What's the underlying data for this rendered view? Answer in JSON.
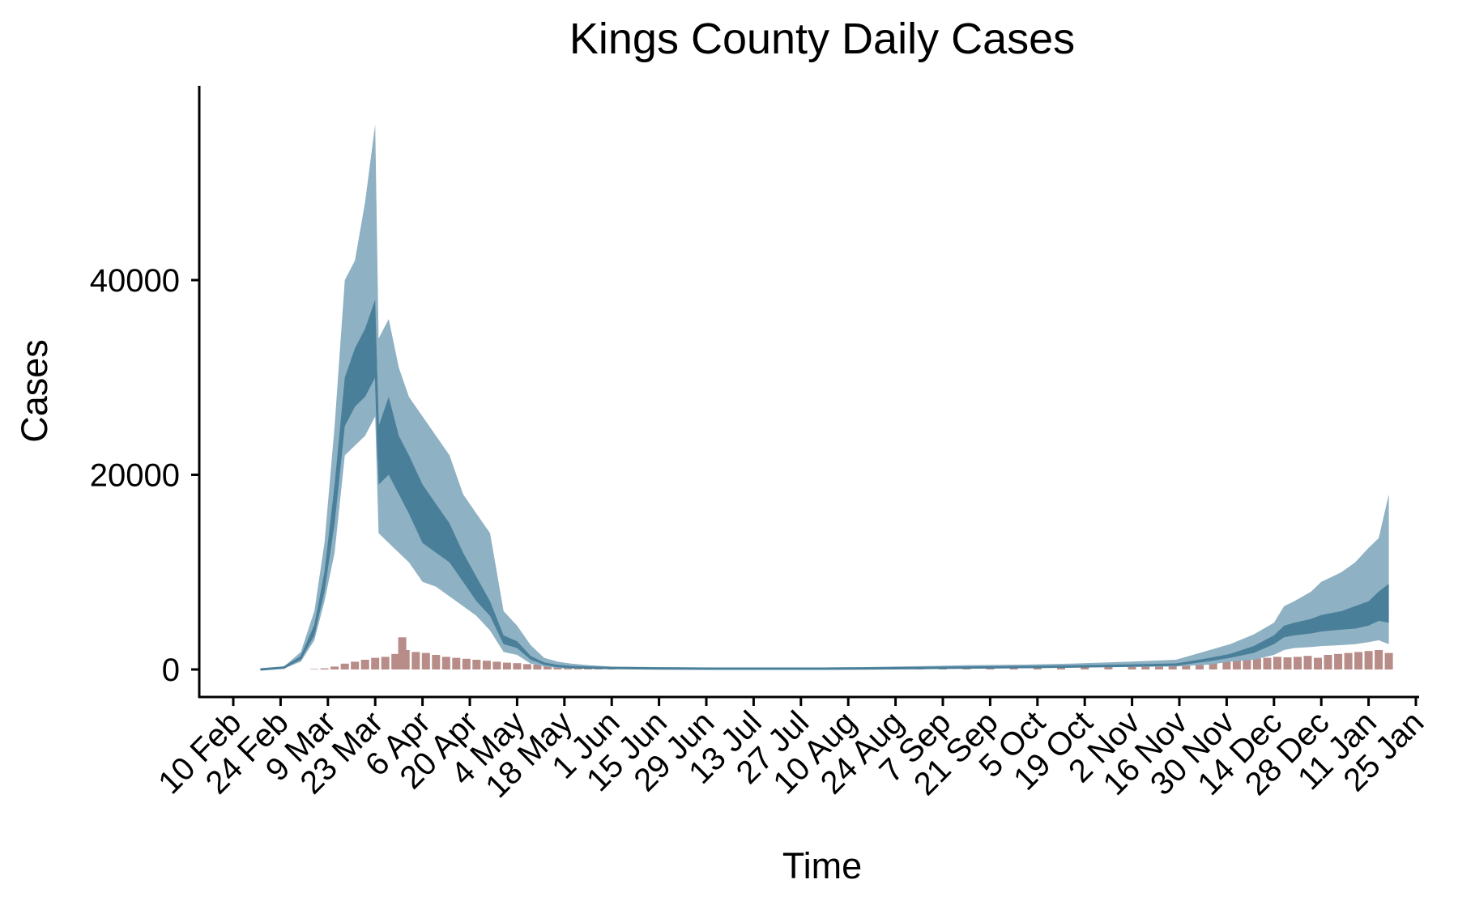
{
  "chart_data": {
    "type": "area",
    "title": "Kings County Daily Cases",
    "xlabel": "Time",
    "ylabel": "Cases",
    "ylim": [
      -7000,
      56000
    ],
    "yticks": [
      0,
      20000,
      40000
    ],
    "xticks": [
      {
        "date": "2020-02-10",
        "label": "10 Feb"
      },
      {
        "date": "2020-02-24",
        "label": "24 Feb"
      },
      {
        "date": "2020-03-09",
        "label": "9 Mar"
      },
      {
        "date": "2020-03-23",
        "label": "23 Mar"
      },
      {
        "date": "2020-04-06",
        "label": "6 Apr"
      },
      {
        "date": "2020-04-20",
        "label": "20 Apr"
      },
      {
        "date": "2020-05-04",
        "label": "4 May"
      },
      {
        "date": "2020-05-18",
        "label": "18 May"
      },
      {
        "date": "2020-06-01",
        "label": "1 Jun"
      },
      {
        "date": "2020-06-15",
        "label": "15 Jun"
      },
      {
        "date": "2020-06-29",
        "label": "29 Jun"
      },
      {
        "date": "2020-07-13",
        "label": "13 Jul"
      },
      {
        "date": "2020-07-27",
        "label": "27 Jul"
      },
      {
        "date": "2020-08-10",
        "label": "10 Aug"
      },
      {
        "date": "2020-08-24",
        "label": "24 Aug"
      },
      {
        "date": "2020-09-07",
        "label": "7 Sep"
      },
      {
        "date": "2020-09-21",
        "label": "21 Sep"
      },
      {
        "date": "2020-10-05",
        "label": "5 Oct"
      },
      {
        "date": "2020-10-19",
        "label": "19 Oct"
      },
      {
        "date": "2020-11-02",
        "label": "2 Nov"
      },
      {
        "date": "2020-11-16",
        "label": "16 Nov"
      },
      {
        "date": "2020-11-30",
        "label": "30 Nov"
      },
      {
        "date": "2020-12-14",
        "label": "14 Dec"
      },
      {
        "date": "2020-12-28",
        "label": "28 Dec"
      },
      {
        "date": "2021-01-11",
        "label": "11 Jan"
      },
      {
        "date": "2021-01-25",
        "label": "25 Jan"
      }
    ],
    "grid": false,
    "legend": "none",
    "colors": {
      "outer_band": "#8eb1c3",
      "inner_band": "#4a7f9a",
      "median_line": "#4a7f9a",
      "reported_bars": "#b88c88"
    },
    "estimate": {
      "x": [
        "2020-02-18",
        "2020-02-25",
        "2020-03-01",
        "2020-03-05",
        "2020-03-08",
        "2020-03-11",
        "2020-03-14",
        "2020-03-17",
        "2020-03-20",
        "2020-03-23",
        "2020-03-24",
        "2020-03-27",
        "2020-03-30",
        "2020-04-02",
        "2020-04-06",
        "2020-04-10",
        "2020-04-14",
        "2020-04-18",
        "2020-04-22",
        "2020-04-26",
        "2020-04-30",
        "2020-05-04",
        "2020-05-08",
        "2020-05-12",
        "2020-05-16",
        "2020-05-20",
        "2020-05-25",
        "2020-06-01",
        "2020-06-15",
        "2020-07-01",
        "2020-07-15",
        "2020-08-01",
        "2020-08-15",
        "2020-09-01",
        "2020-09-15",
        "2020-10-01",
        "2020-10-15",
        "2020-11-01",
        "2020-11-15",
        "2020-11-25",
        "2020-12-01",
        "2020-12-08",
        "2020-12-14",
        "2020-12-17",
        "2020-12-20",
        "2020-12-25",
        "2020-12-28",
        "2021-01-03",
        "2021-01-07",
        "2021-01-11",
        "2021-01-14",
        "2021-01-17"
      ],
      "median": [
        0,
        200,
        1200,
        4000,
        9000,
        17000,
        27000,
        30000,
        31000,
        33000,
        22000,
        24000,
        21000,
        19000,
        16000,
        14000,
        13000,
        10000,
        8000,
        6200,
        3000,
        2500,
        1200,
        600,
        350,
        250,
        200,
        150,
        100,
        80,
        80,
        80,
        100,
        150,
        200,
        250,
        300,
        400,
        500,
        1000,
        1400,
        2000,
        3000,
        3800,
        4000,
        4200,
        4500,
        4800,
        5000,
        5500,
        6000,
        6000
      ],
      "inner_low": [
        0,
        150,
        1000,
        3500,
        8000,
        15000,
        25000,
        27000,
        28000,
        30000,
        19000,
        20000,
        18000,
        16000,
        13000,
        12000,
        11000,
        9000,
        7000,
        5500,
        2600,
        2200,
        1000,
        500,
        300,
        200,
        150,
        120,
        80,
        60,
        60,
        60,
        80,
        120,
        160,
        200,
        250,
        330,
        420,
        850,
        1200,
        1700,
        2600,
        3300,
        3500,
        3700,
        3900,
        4100,
        4200,
        4500,
        5000,
        4800
      ],
      "inner_high": [
        0,
        250,
        1400,
        4600,
        10000,
        19000,
        30000,
        33000,
        35000,
        38000,
        25000,
        28000,
        24000,
        22000,
        19000,
        17000,
        15000,
        12000,
        9500,
        7000,
        3500,
        2900,
        1400,
        700,
        400,
        300,
        250,
        180,
        120,
        100,
        100,
        100,
        130,
        180,
        240,
        300,
        360,
        480,
        600,
        1200,
        1600,
        2400,
        3500,
        4500,
        4800,
        5200,
        5600,
        6000,
        6500,
        7000,
        8000,
        8800
      ],
      "outer_low": [
        0,
        100,
        800,
        3000,
        7000,
        12000,
        22000,
        23000,
        24000,
        26000,
        14000,
        13000,
        12000,
        11000,
        9000,
        8500,
        7500,
        6500,
        5500,
        4000,
        1800,
        1500,
        600,
        300,
        150,
        100,
        80,
        50,
        40,
        30,
        30,
        30,
        50,
        80,
        100,
        150,
        200,
        250,
        300,
        500,
        800,
        1000,
        1500,
        2000,
        2200,
        2300,
        2400,
        2500,
        2600,
        2800,
        3000,
        2600
      ],
      "outer_high": [
        0,
        300,
        1800,
        6000,
        13000,
        25000,
        40000,
        42000,
        48000,
        56000,
        34000,
        36000,
        31000,
        28000,
        26000,
        24000,
        22000,
        18000,
        16000,
        14000,
        6000,
        4500,
        2500,
        1200,
        800,
        600,
        450,
        300,
        250,
        200,
        200,
        200,
        250,
        350,
        450,
        500,
        600,
        800,
        1000,
        2000,
        2600,
        3600,
        4800,
        6500,
        7000,
        8000,
        9000,
        10000,
        11000,
        12500,
        13500,
        18000
      ]
    },
    "reported": {
      "x": [
        "2020-03-05",
        "2020-03-08",
        "2020-03-11",
        "2020-03-14",
        "2020-03-17",
        "2020-03-20",
        "2020-03-23",
        "2020-03-26",
        "2020-03-29",
        "2020-03-31",
        "2020-04-01",
        "2020-04-04",
        "2020-04-07",
        "2020-04-10",
        "2020-04-13",
        "2020-04-16",
        "2020-04-19",
        "2020-04-22",
        "2020-04-25",
        "2020-04-28",
        "2020-05-01",
        "2020-05-04",
        "2020-05-07",
        "2020-05-10",
        "2020-05-13",
        "2020-05-16",
        "2020-05-19",
        "2020-05-22",
        "2020-05-25",
        "2020-05-28",
        "2020-06-01",
        "2020-06-08",
        "2020-06-15",
        "2020-06-22",
        "2020-06-29",
        "2020-07-06",
        "2020-07-13",
        "2020-07-20",
        "2020-07-27",
        "2020-08-03",
        "2020-08-10",
        "2020-08-17",
        "2020-08-24",
        "2020-08-31",
        "2020-09-07",
        "2020-09-14",
        "2020-09-21",
        "2020-09-28",
        "2020-10-05",
        "2020-10-12",
        "2020-10-19",
        "2020-10-26",
        "2020-11-02",
        "2020-11-06",
        "2020-11-10",
        "2020-11-14",
        "2020-11-18",
        "2020-11-22",
        "2020-11-26",
        "2020-11-30",
        "2020-12-03",
        "2020-12-06",
        "2020-12-09",
        "2020-12-12",
        "2020-12-15",
        "2020-12-18",
        "2020-12-21",
        "2020-12-24",
        "2020-12-27",
        "2020-12-30",
        "2021-01-02",
        "2021-01-05",
        "2021-01-08",
        "2021-01-11",
        "2021-01-14",
        "2021-01-17"
      ],
      "values": [
        50,
        120,
        300,
        600,
        800,
        1000,
        1200,
        1300,
        1600,
        3300,
        2000,
        1800,
        1700,
        1500,
        1300,
        1200,
        1100,
        1000,
        900,
        800,
        700,
        650,
        550,
        500,
        400,
        350,
        300,
        250,
        200,
        180,
        150,
        120,
        100,
        90,
        90,
        80,
        80,
        80,
        80,
        80,
        80,
        90,
        90,
        100,
        110,
        120,
        130,
        150,
        180,
        200,
        220,
        250,
        280,
        320,
        380,
        450,
        550,
        650,
        700,
        800,
        950,
        1050,
        1150,
        1200,
        1300,
        1250,
        1300,
        1400,
        1200,
        1500,
        1600,
        1700,
        1800,
        1900,
        2000,
        1700
      ]
    }
  }
}
